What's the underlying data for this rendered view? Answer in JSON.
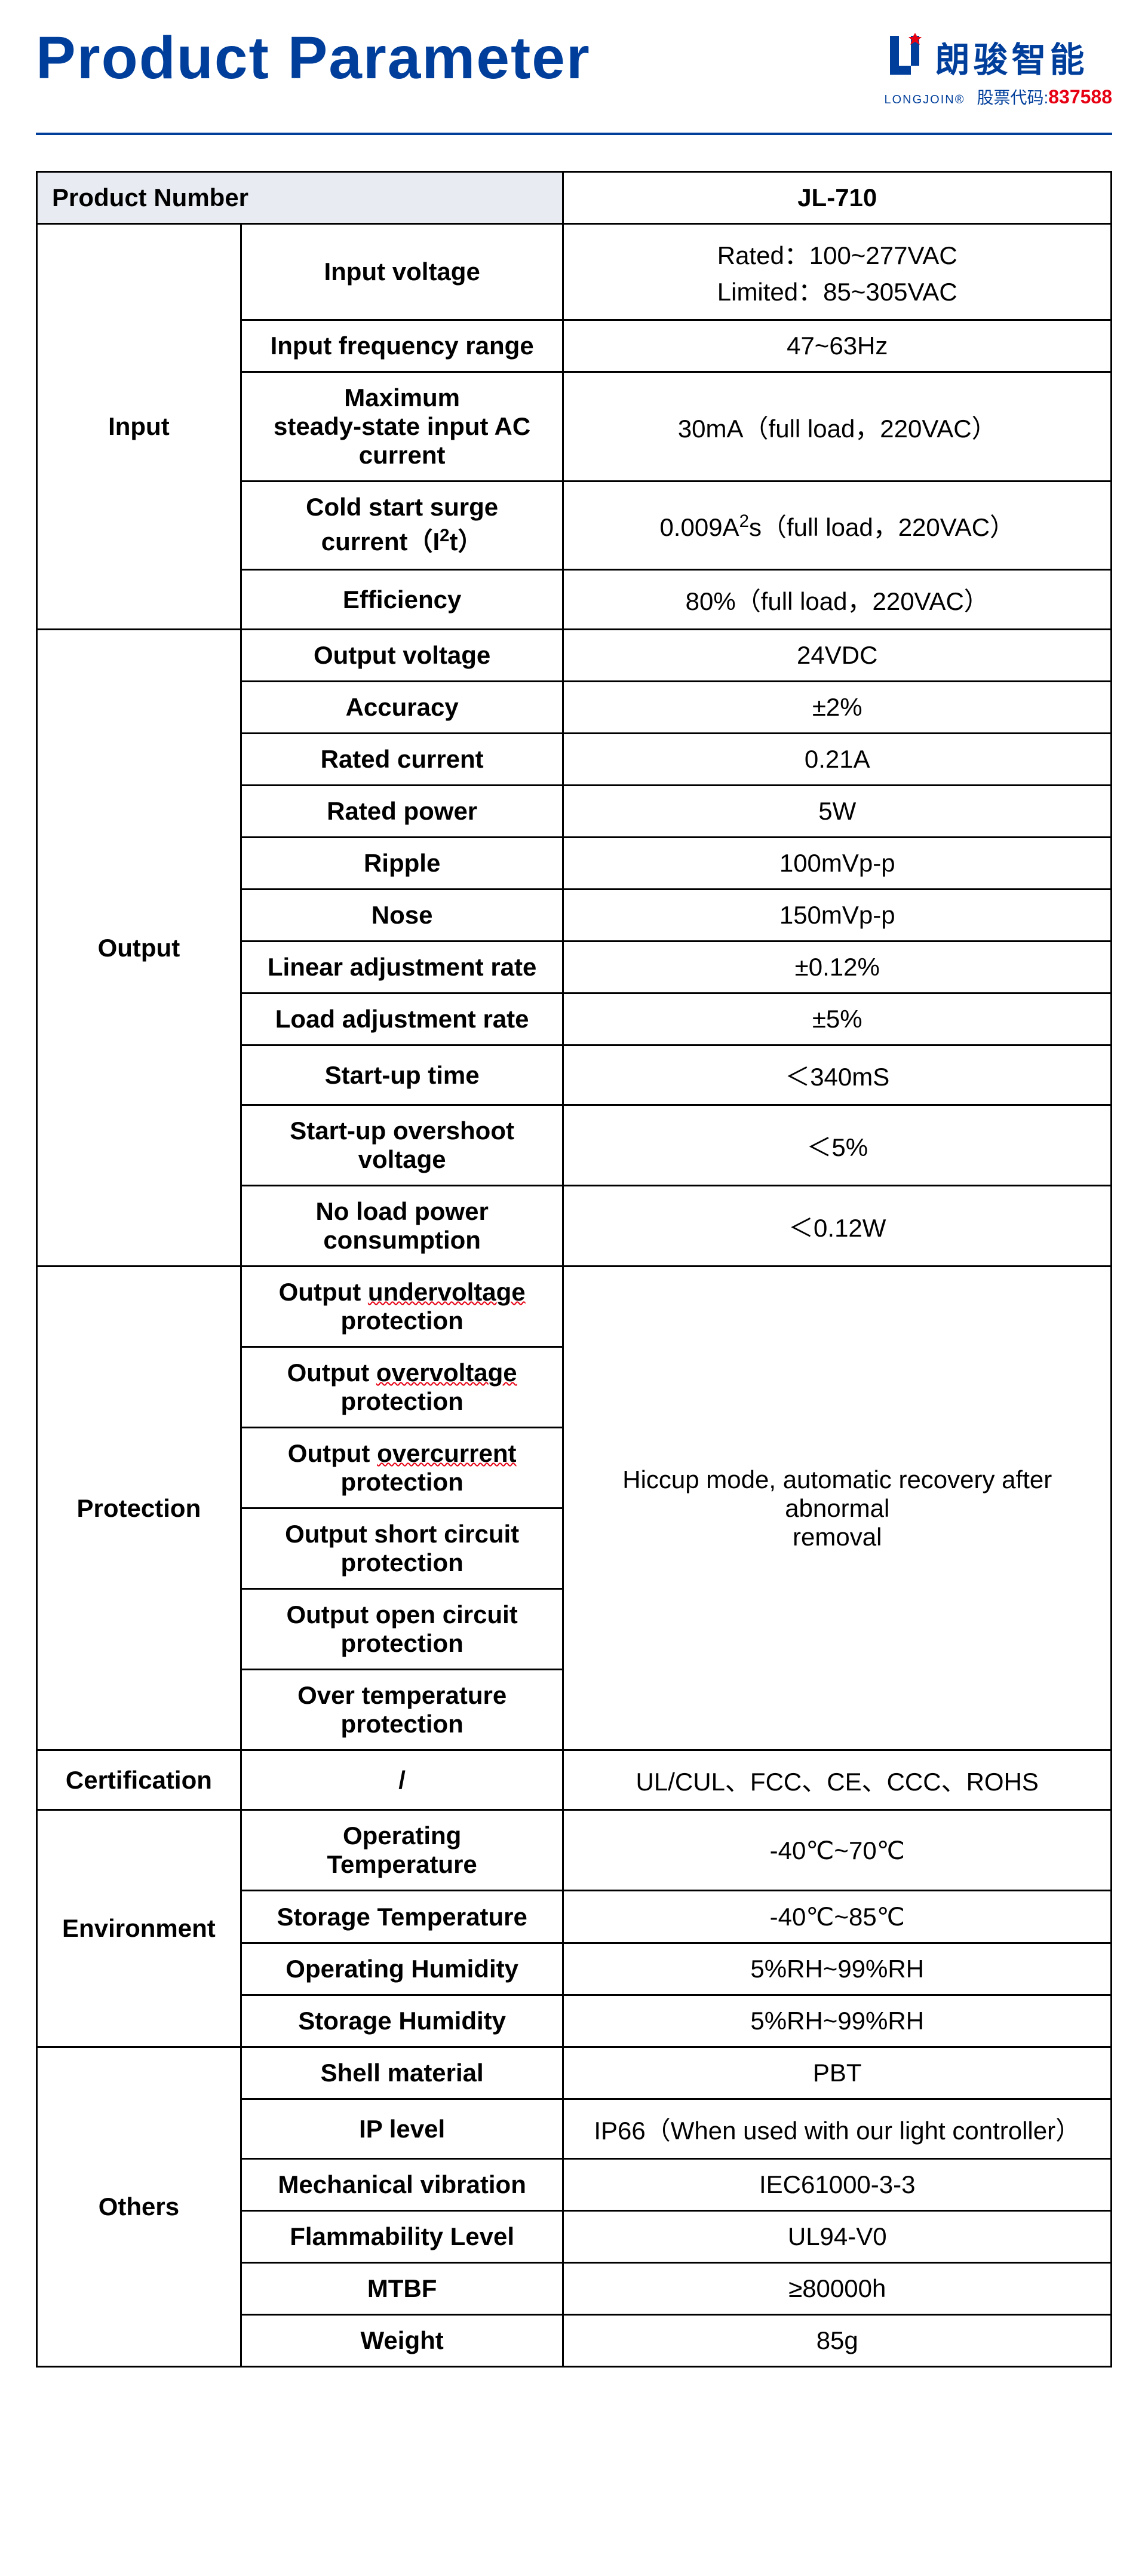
{
  "page": {
    "title": "Product Parameter",
    "logo": {
      "cn": "朗骏智能",
      "en": "LONGJOIN®",
      "stock_label": "股票代码:",
      "stock_code": "837588"
    }
  },
  "colors": {
    "brand_blue": "#003e9b",
    "accent_red": "#e60012",
    "header_bg": "#e8ecf2",
    "border": "#000000",
    "text": "#000000",
    "background": "#ffffff"
  },
  "table": {
    "header": {
      "left": "Product Number",
      "right": "JL-710"
    },
    "sections": [
      {
        "category": "Input",
        "rows": [
          {
            "param": "Input voltage",
            "value_lines": [
              "Rated：100~277VAC",
              "Limited：85~305VAC"
            ]
          },
          {
            "param": "Input frequency range",
            "value": "47~63Hz"
          },
          {
            "param_lines": [
              "Maximum",
              "steady-state input AC",
              "current"
            ],
            "value": "30mA（full load，220VAC）"
          },
          {
            "param_lines": [
              "Cold start surge",
              "current（I²t）"
            ],
            "value": "0.009A²s（full load，220VAC）"
          },
          {
            "param": "Efficiency",
            "value": "80%（full load，220VAC）"
          }
        ]
      },
      {
        "category": "Output",
        "rows": [
          {
            "param": "Output voltage",
            "value": "24VDC"
          },
          {
            "param": "Accuracy",
            "value": "±2%"
          },
          {
            "param": "Rated current",
            "value": "0.21A"
          },
          {
            "param": "Rated power",
            "value": "5W"
          },
          {
            "param": "Ripple",
            "value": "100mVp-p"
          },
          {
            "param": "Nose",
            "value": "150mVp-p"
          },
          {
            "param": "Linear adjustment rate",
            "value": "±0.12%"
          },
          {
            "param": "Load adjustment rate",
            "value": "±5%"
          },
          {
            "param": "Start-up time",
            "value": "＜340mS"
          },
          {
            "param_lines": [
              "Start-up overshoot",
              "voltage"
            ],
            "value": "＜5%"
          },
          {
            "param_lines": [
              "No load power",
              "consumption"
            ],
            "value": "＜0.12W"
          }
        ]
      },
      {
        "category": "Protection",
        "merged_value_lines": [
          "Hiccup mode, automatic recovery after",
          "abnormal",
          "removal"
        ],
        "rows": [
          {
            "param_lines_wavy": [
              [
                "Output ",
                "undervoltage"
              ],
              "protection"
            ]
          },
          {
            "param_lines_wavy": [
              [
                "Output ",
                "overvoltage"
              ],
              "protection"
            ]
          },
          {
            "param_lines_wavy": [
              [
                "Output ",
                "overcurrent"
              ],
              "protection"
            ]
          },
          {
            "param_lines": [
              "Output short circuit",
              "protection"
            ]
          },
          {
            "param_lines": [
              "Output open circuit",
              "protection"
            ]
          },
          {
            "param_lines": [
              "Over temperature",
              "protection"
            ]
          }
        ]
      },
      {
        "category": "Certification",
        "rows": [
          {
            "param": "/",
            "value": "UL/CUL、FCC、CE、CCC、ROHS"
          }
        ]
      },
      {
        "category": "Environment",
        "rows": [
          {
            "param_lines": [
              "Operating",
              "Temperature"
            ],
            "value": "-40℃~70℃"
          },
          {
            "param": "Storage Temperature",
            "value": "-40℃~85℃"
          },
          {
            "param": "Operating Humidity",
            "value": "5%RH~99%RH"
          },
          {
            "param": "Storage Humidity",
            "value": "5%RH~99%RH"
          }
        ]
      },
      {
        "category": "Others",
        "rows": [
          {
            "param": "Shell material",
            "value": "PBT"
          },
          {
            "param": "IP level",
            "value": "IP66（When used with our light controller）"
          },
          {
            "param": "Mechanical vibration",
            "value": "IEC61000-3-3"
          },
          {
            "param": "Flammability Level",
            "value": "UL94-V0"
          },
          {
            "param": "MTBF",
            "value": "≥80000h"
          },
          {
            "param": "Weight",
            "value": "85g"
          }
        ]
      }
    ]
  }
}
